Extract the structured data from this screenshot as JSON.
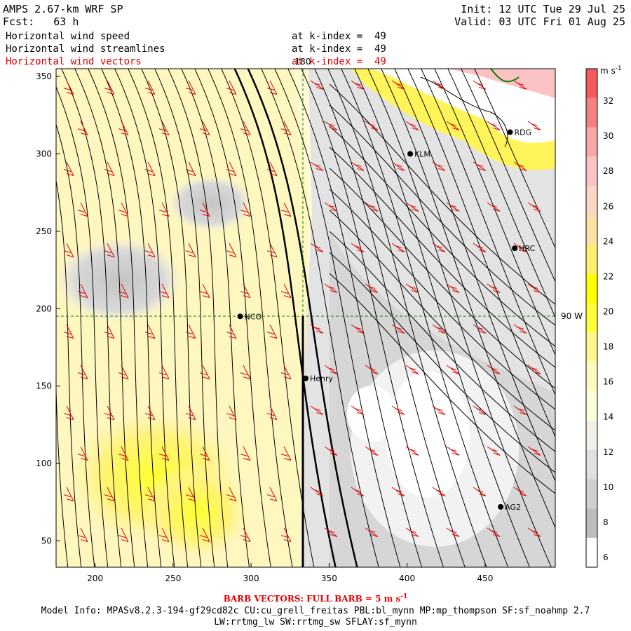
{
  "header": {
    "model_title": "AMPS 2.67-km WRF SP",
    "forecast": "Fcst:   63 h",
    "init": "Init: 12 UTC Tue 29 Jul 25",
    "valid": "Valid: 03 UTC Fri 01 Aug 25"
  },
  "layers": [
    {
      "name": "Horizontal wind speed",
      "level": "at k-index =  49",
      "color": "#000000"
    },
    {
      "name": "Horizontal wind streamlines",
      "level": "at k-index =  49",
      "color": "#000000"
    },
    {
      "name": "Horizontal wind vectors",
      "level": "at k-index =  49",
      "color": "#e00000"
    }
  ],
  "axes": {
    "x_ticks": [
      "200",
      "250",
      "300",
      "350",
      "400",
      "450"
    ],
    "y_ticks": [
      "50",
      "100",
      "150",
      "200",
      "250",
      "300",
      "350"
    ],
    "x_range": [
      175,
      495
    ],
    "y_range": [
      33,
      355
    ]
  },
  "graticule": {
    "meridian_label": "180",
    "parallel_label": "90 W"
  },
  "stations": [
    {
      "name": "RDG",
      "x": 466,
      "y": 314
    },
    {
      "name": "KLM",
      "x": 402,
      "y": 300
    },
    {
      "name": "HRC",
      "x": 469,
      "y": 239
    },
    {
      "name": "NCO",
      "x": 293,
      "y": 195
    },
    {
      "name": "Henry",
      "x": 335,
      "y": 155
    },
    {
      "name": "AG2",
      "x": 460,
      "y": 72
    }
  ],
  "colorbar": {
    "units": "m s",
    "units_sup": "-1",
    "labels": [
      "32",
      "30",
      "28",
      "26",
      "24",
      "22",
      "20",
      "18",
      "16",
      "14",
      "12",
      "10",
      "8",
      "6"
    ],
    "colors": [
      "#f55a5a",
      "#f78080",
      "#f9a6a6",
      "#fbc3c3",
      "#fdd6c6",
      "#fde2a6",
      "#fdf06e",
      "#ffff00",
      "#ffff3c",
      "#fff78e",
      "#fffabf",
      "#ffffe0",
      "#f0f0e8",
      "#e0e0e0",
      "#cfcfcf",
      "#bdbdbd",
      "#ffffff"
    ]
  },
  "footer": {
    "barb_label": "BARB VECTORS: FULL BARB = 5 m s",
    "barb_sup": "-1",
    "model_info": "Model Info: MPASv8.2.3-194-gf29cd82c CU:cu_grell_freitas PBL:bl_mynn MP:mp_thompson SF:sf_noahmp 2.7",
    "physics": "LW:rrtmg_lw SW:rrtmg_sw SFLAY:sf_mynn"
  }
}
